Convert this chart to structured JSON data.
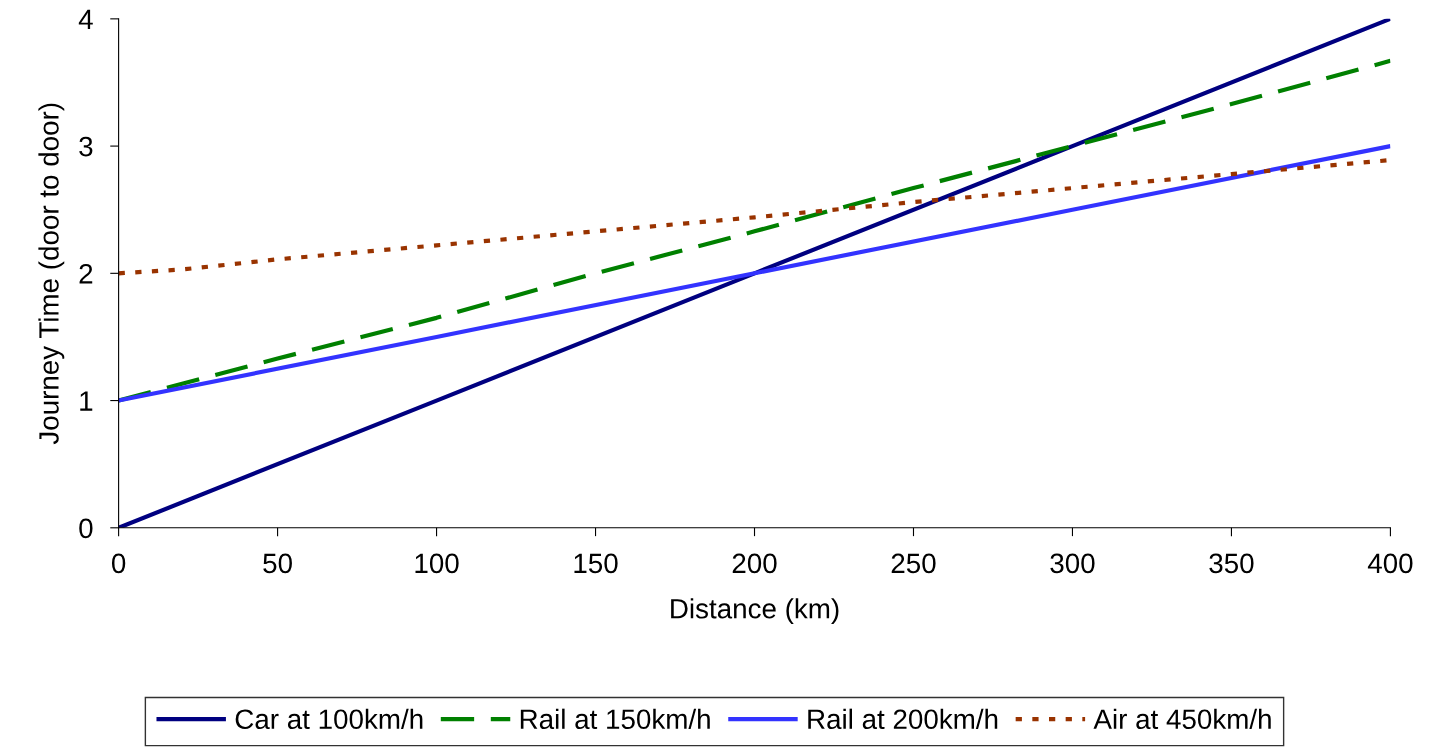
{
  "chart_data": {
    "type": "line",
    "xlabel": "Distance (km)",
    "ylabel": "Journey Time (door to door)",
    "xlim": [
      0,
      400
    ],
    "ylim": [
      0,
      4
    ],
    "xticks": [
      0,
      50,
      100,
      150,
      200,
      250,
      300,
      350,
      400
    ],
    "yticks": [
      0,
      1,
      2,
      3,
      4
    ],
    "grid": false,
    "legend": "bottom",
    "marker": "none",
    "series": [
      {
        "name": "Car at 100km/h",
        "color": "#000080",
        "line_style": "solid",
        "x": [
          0,
          100,
          200,
          300,
          400
        ],
        "values": [
          0,
          1,
          2,
          3,
          4
        ]
      },
      {
        "name": "Rail at 150km/h",
        "color": "#008000",
        "line_style": "dashed",
        "x": [
          0,
          50,
          100,
          150,
          200,
          250,
          300,
          350,
          400
        ],
        "values": [
          1.0,
          1.33,
          1.65,
          2.0,
          2.33,
          2.67,
          3.0,
          3.33,
          3.67
        ]
      },
      {
        "name": "Rail at 200km/h",
        "color": "#3333ff",
        "line_style": "solid",
        "x": [
          0,
          100,
          200,
          300,
          400
        ],
        "values": [
          1,
          1.5,
          2,
          2.5,
          3
        ]
      },
      {
        "name": "Air at 450km/h",
        "color": "#993300",
        "line_style": "dotted",
        "x": [
          0,
          20,
          50,
          100,
          150,
          200,
          250,
          300,
          350,
          400
        ],
        "values": [
          2.0,
          2.03,
          2.11,
          2.22,
          2.33,
          2.44,
          2.56,
          2.67,
          2.78,
          2.89
        ]
      }
    ]
  }
}
